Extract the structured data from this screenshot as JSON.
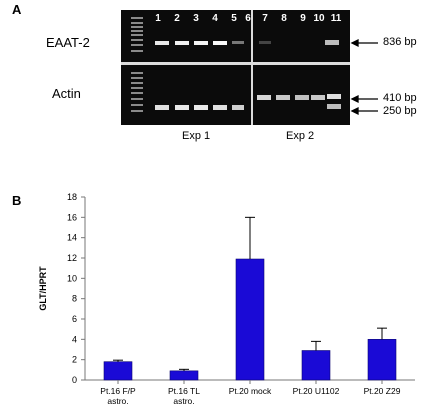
{
  "panel_a": {
    "label": "A",
    "rows": [
      {
        "name": "EAAT-2",
        "bands": [
          "836 bp"
        ]
      },
      {
        "name": "Actin",
        "bands": [
          "410 bp",
          "250 bp"
        ]
      }
    ],
    "lanes": [
      "1",
      "2",
      "3",
      "4",
      "5",
      "6",
      "7",
      "8",
      "9",
      "10",
      "11"
    ],
    "groups": [
      "Exp 1",
      "Exp 2"
    ]
  },
  "panel_b": {
    "label": "B",
    "chart_data": {
      "type": "bar",
      "categories": [
        "Pt.16 F/P\nastro.",
        "Pt.16 TL\nastro.",
        "Pt.20 mock",
        "Pt.20 U1102",
        "Pt.20 Z29"
      ],
      "values": [
        1.8,
        0.9,
        11.9,
        2.9,
        4.0
      ],
      "errors": [
        0.15,
        0.15,
        4.1,
        0.9,
        1.1
      ],
      "ylabel": "GLT/HPRT",
      "ylim": [
        0,
        18
      ],
      "yticks": [
        0,
        2,
        4,
        6,
        8,
        10,
        12,
        14,
        16,
        18
      ],
      "bar_color": "#1a0ad6",
      "grid": false
    }
  }
}
